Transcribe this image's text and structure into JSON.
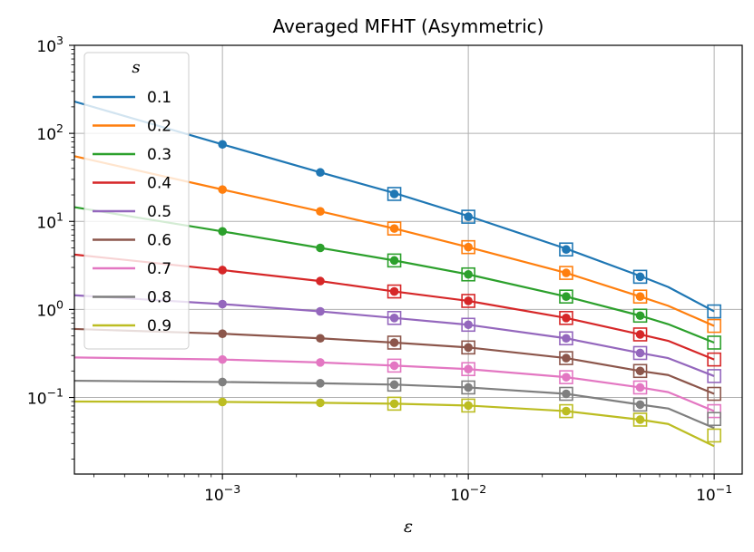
{
  "chart_data": {
    "type": "line",
    "title": "Averaged MFHT (Asymmetric)",
    "xlabel": "ε",
    "ylabel": "",
    "xscale": "log",
    "yscale": "log",
    "xlim": [
      0.00025,
      0.13
    ],
    "ylim": [
      0.0135,
      1000
    ],
    "grid": true,
    "legend": {
      "title": "s",
      "placement": "upper-left"
    },
    "x_ticks": [
      {
        "value": 0.001,
        "base": "10",
        "exp": "−3"
      },
      {
        "value": 0.01,
        "base": "10",
        "exp": "−2"
      },
      {
        "value": 0.1,
        "base": "10",
        "exp": "−1"
      }
    ],
    "y_ticks": [
      {
        "value": 0.1,
        "base": "10",
        "exp": "−1"
      },
      {
        "value": 1,
        "base": "10",
        "exp": "0"
      },
      {
        "value": 10,
        "base": "10",
        "exp": "1"
      },
      {
        "value": 100,
        "base": "10",
        "exp": "2"
      },
      {
        "value": 1000,
        "base": "10",
        "exp": "3"
      }
    ],
    "line_x": [
      0.00025,
      0.001,
      0.0025,
      0.005,
      0.01,
      0.025,
      0.05,
      0.065,
      0.1
    ],
    "dot_x": [
      0.001,
      0.0025,
      0.005,
      0.01,
      0.025,
      0.05
    ],
    "square_x": [
      0.005,
      0.01,
      0.025,
      0.05,
      0.1
    ],
    "series": [
      {
        "name": "0.1",
        "color": "#1f77b4",
        "line": [
          230,
          75,
          36,
          21,
          11.5,
          4.9,
          2.4,
          1.8,
          0.95
        ],
        "dots": [
          75,
          36,
          20.5,
          11.3,
          4.8,
          2.35
        ],
        "squares": [
          20.5,
          11.3,
          4.8,
          2.35,
          0.95
        ]
      },
      {
        "name": "0.2",
        "color": "#ff7f0e",
        "line": [
          55,
          23,
          13,
          8.3,
          5.1,
          2.6,
          1.4,
          1.1,
          0.65
        ],
        "dots": [
          23,
          13,
          8.3,
          5.1,
          2.6,
          1.4
        ],
        "squares": [
          8.3,
          5.1,
          2.6,
          1.4,
          0.65
        ]
      },
      {
        "name": "0.3",
        "color": "#2ca02c",
        "line": [
          14.5,
          7.7,
          5.0,
          3.6,
          2.5,
          1.4,
          0.85,
          0.68,
          0.42
        ],
        "dots": [
          7.7,
          5.0,
          3.6,
          2.5,
          1.4,
          0.85
        ],
        "squares": [
          3.6,
          2.5,
          1.4,
          0.85,
          0.42
        ]
      },
      {
        "name": "0.4",
        "color": "#d62728",
        "line": [
          4.2,
          2.8,
          2.1,
          1.6,
          1.25,
          0.8,
          0.52,
          0.44,
          0.27
        ],
        "dots": [
          2.8,
          2.1,
          1.6,
          1.25,
          0.8,
          0.52
        ],
        "squares": [
          1.6,
          1.25,
          0.8,
          0.52,
          0.27
        ]
      },
      {
        "name": "0.5",
        "color": "#9467bd",
        "line": [
          1.45,
          1.15,
          0.95,
          0.8,
          0.67,
          0.47,
          0.32,
          0.28,
          0.175
        ],
        "dots": [
          1.15,
          0.95,
          0.8,
          0.67,
          0.47,
          0.32
        ],
        "squares": [
          0.8,
          0.67,
          0.47,
          0.32,
          0.175
        ]
      },
      {
        "name": "0.6",
        "color": "#8c564b",
        "line": [
          0.6,
          0.53,
          0.47,
          0.42,
          0.37,
          0.28,
          0.2,
          0.18,
          0.11
        ],
        "dots": [
          0.53,
          0.47,
          0.42,
          0.37,
          0.28,
          0.2
        ],
        "squares": [
          0.42,
          0.37,
          0.28,
          0.2,
          0.11
        ]
      },
      {
        "name": "0.7",
        "color": "#e377c2",
        "line": [
          0.285,
          0.27,
          0.25,
          0.23,
          0.21,
          0.17,
          0.13,
          0.115,
          0.07
        ],
        "dots": [
          0.27,
          0.25,
          0.23,
          0.21,
          0.17,
          0.13
        ],
        "squares": [
          0.23,
          0.21,
          0.17,
          0.13,
          0.07
        ]
      },
      {
        "name": "0.8",
        "color": "#7f7f7f",
        "line": [
          0.155,
          0.15,
          0.145,
          0.14,
          0.13,
          0.11,
          0.083,
          0.075,
          0.045
        ],
        "dots": [
          0.15,
          0.145,
          0.14,
          0.13,
          0.11,
          0.083
        ],
        "squares": [
          0.14,
          0.13,
          0.11,
          0.083,
          0.057
        ]
      },
      {
        "name": "0.9",
        "color": "#bcbd22",
        "line": [
          0.09,
          0.089,
          0.087,
          0.085,
          0.081,
          0.07,
          0.056,
          0.05,
          0.028
        ],
        "dots": [
          0.089,
          0.087,
          0.085,
          0.081,
          0.07,
          0.056
        ],
        "squares": [
          0.085,
          0.081,
          0.07,
          0.056,
          0.037
        ]
      }
    ]
  }
}
